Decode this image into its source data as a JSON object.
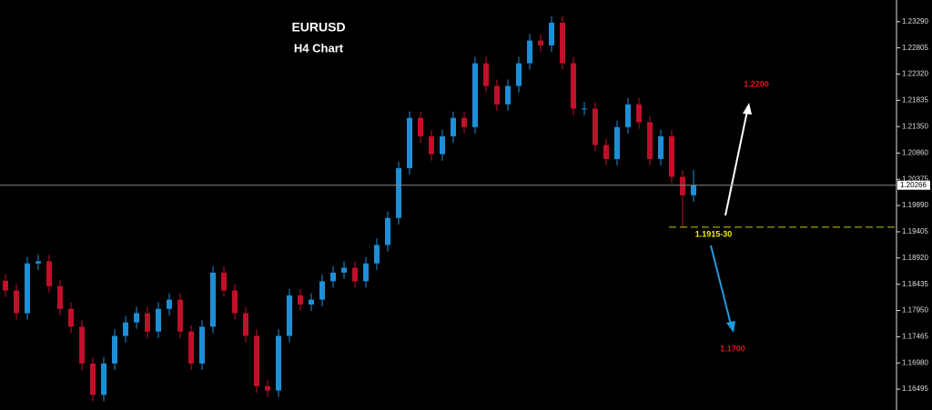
{
  "chart_data": {
    "type": "candlestick",
    "title": "EURUSD",
    "subtitle": "H4 Chart",
    "up_color": "#1e8fd6",
    "down_color": "#c0102a",
    "open": [
      1.185,
      1.1832,
      1.179,
      1.1882,
      1.1886,
      1.184,
      1.1798,
      1.1765,
      1.1697,
      1.1639,
      1.1697,
      1.1748,
      1.1773,
      1.179,
      1.1756,
      1.1798,
      1.1815,
      1.1756,
      1.1697,
      1.1765,
      1.1865,
      1.1832,
      1.179,
      1.1748,
      1.1655,
      1.1647,
      1.1748,
      1.1823,
      1.1806,
      1.1815,
      1.1849,
      1.1865,
      1.1874,
      1.1849,
      1.1882,
      1.1916,
      1.1966,
      1.2058,
      1.2151,
      1.2117,
      1.2084,
      1.2117,
      1.2151,
      1.2134,
      1.2252,
      1.221,
      1.2176,
      1.221,
      1.2252,
      1.2294,
      1.2285,
      1.2327,
      1.2252,
      1.2168,
      1.2168,
      1.2101,
      1.2075,
      1.2134,
      1.2176,
      1.2143,
      1.2075,
      1.2117,
      1.2042,
      1.2008
    ],
    "high": [
      1.1862,
      1.1844,
      1.1894,
      1.1898,
      1.1898,
      1.1852,
      1.181,
      1.1777,
      1.1709,
      1.1709,
      1.176,
      1.1785,
      1.1802,
      1.1802,
      1.181,
      1.1827,
      1.1827,
      1.1768,
      1.1777,
      1.1877,
      1.1877,
      1.1844,
      1.1802,
      1.176,
      1.1667,
      1.176,
      1.1835,
      1.1835,
      1.1827,
      1.1861,
      1.1877,
      1.1886,
      1.1886,
      1.1894,
      1.1928,
      1.1978,
      1.207,
      1.2163,
      1.2163,
      1.2129,
      1.2129,
      1.2163,
      1.2163,
      1.2264,
      1.2264,
      1.2222,
      1.2222,
      1.2264,
      1.2306,
      1.2306,
      1.2339,
      1.2339,
      1.2264,
      1.218,
      1.218,
      1.2113,
      1.2146,
      1.2188,
      1.2188,
      1.2155,
      1.2129,
      1.2129,
      1.2054,
      1.2055
    ],
    "low": [
      1.182,
      1.1778,
      1.1778,
      1.187,
      1.1828,
      1.1786,
      1.1753,
      1.1685,
      1.1627,
      1.1627,
      1.1685,
      1.1736,
      1.1761,
      1.1744,
      1.1744,
      1.1786,
      1.1744,
      1.1685,
      1.1685,
      1.1753,
      1.182,
      1.1778,
      1.1736,
      1.1643,
      1.1635,
      1.1635,
      1.1736,
      1.1794,
      1.1794,
      1.1803,
      1.1837,
      1.1853,
      1.1837,
      1.1837,
      1.187,
      1.1904,
      1.1954,
      1.2046,
      1.2105,
      1.2072,
      1.2072,
      1.2105,
      1.2122,
      1.2122,
      1.2198,
      1.2164,
      1.2164,
      1.2198,
      1.224,
      1.2273,
      1.2273,
      1.224,
      1.2156,
      1.2156,
      1.2089,
      1.2063,
      1.2063,
      1.2122,
      1.2131,
      1.2063,
      1.2063,
      1.203,
      1.195,
      1.1996
    ],
    "close": [
      1.1832,
      1.179,
      1.1882,
      1.1886,
      1.184,
      1.1798,
      1.1765,
      1.1697,
      1.1639,
      1.1697,
      1.1748,
      1.1773,
      1.179,
      1.1756,
      1.1798,
      1.1815,
      1.1756,
      1.1697,
      1.1765,
      1.1865,
      1.1832,
      1.179,
      1.1748,
      1.1655,
      1.1647,
      1.1748,
      1.1823,
      1.1806,
      1.1815,
      1.1849,
      1.1865,
      1.1874,
      1.1849,
      1.1882,
      1.1916,
      1.1966,
      1.2058,
      1.2151,
      1.2117,
      1.2084,
      1.2117,
      1.2151,
      1.2134,
      1.2252,
      1.221,
      1.2176,
      1.221,
      1.2252,
      1.2294,
      1.2285,
      1.2327,
      1.2252,
      1.2168,
      1.2168,
      1.2101,
      1.2075,
      1.2134,
      1.2176,
      1.2143,
      1.2075,
      1.2117,
      1.2042,
      1.2008,
      1.2027
    ],
    "ylim": [
      1.1611,
      1.2369
    ],
    "yticks": [
      {
        "value": 1.2329,
        "label": "1.23290"
      },
      1.22805,
      {
        "value": 1.2232,
        "label": "1.22320"
      },
      1.21835,
      {
        "value": 1.2135,
        "label": "1.21350"
      },
      {
        "value": 1.2086,
        "label": "1.20860"
      },
      1.20375,
      {
        "value": 1.1989,
        "label": "1.19890"
      },
      1.19405,
      {
        "value": 1.1892,
        "label": "1.18920"
      },
      1.18435,
      {
        "value": 1.1795,
        "label": "1.17950"
      },
      1.17465,
      {
        "value": 1.1698,
        "label": "1.16980"
      },
      1.16495
    ],
    "last_price": 1.20266,
    "support_line": 1.1949,
    "annotations": {
      "support": "1.1915-30",
      "upper_target": "1.2200",
      "lower_target": "1.1700"
    }
  }
}
